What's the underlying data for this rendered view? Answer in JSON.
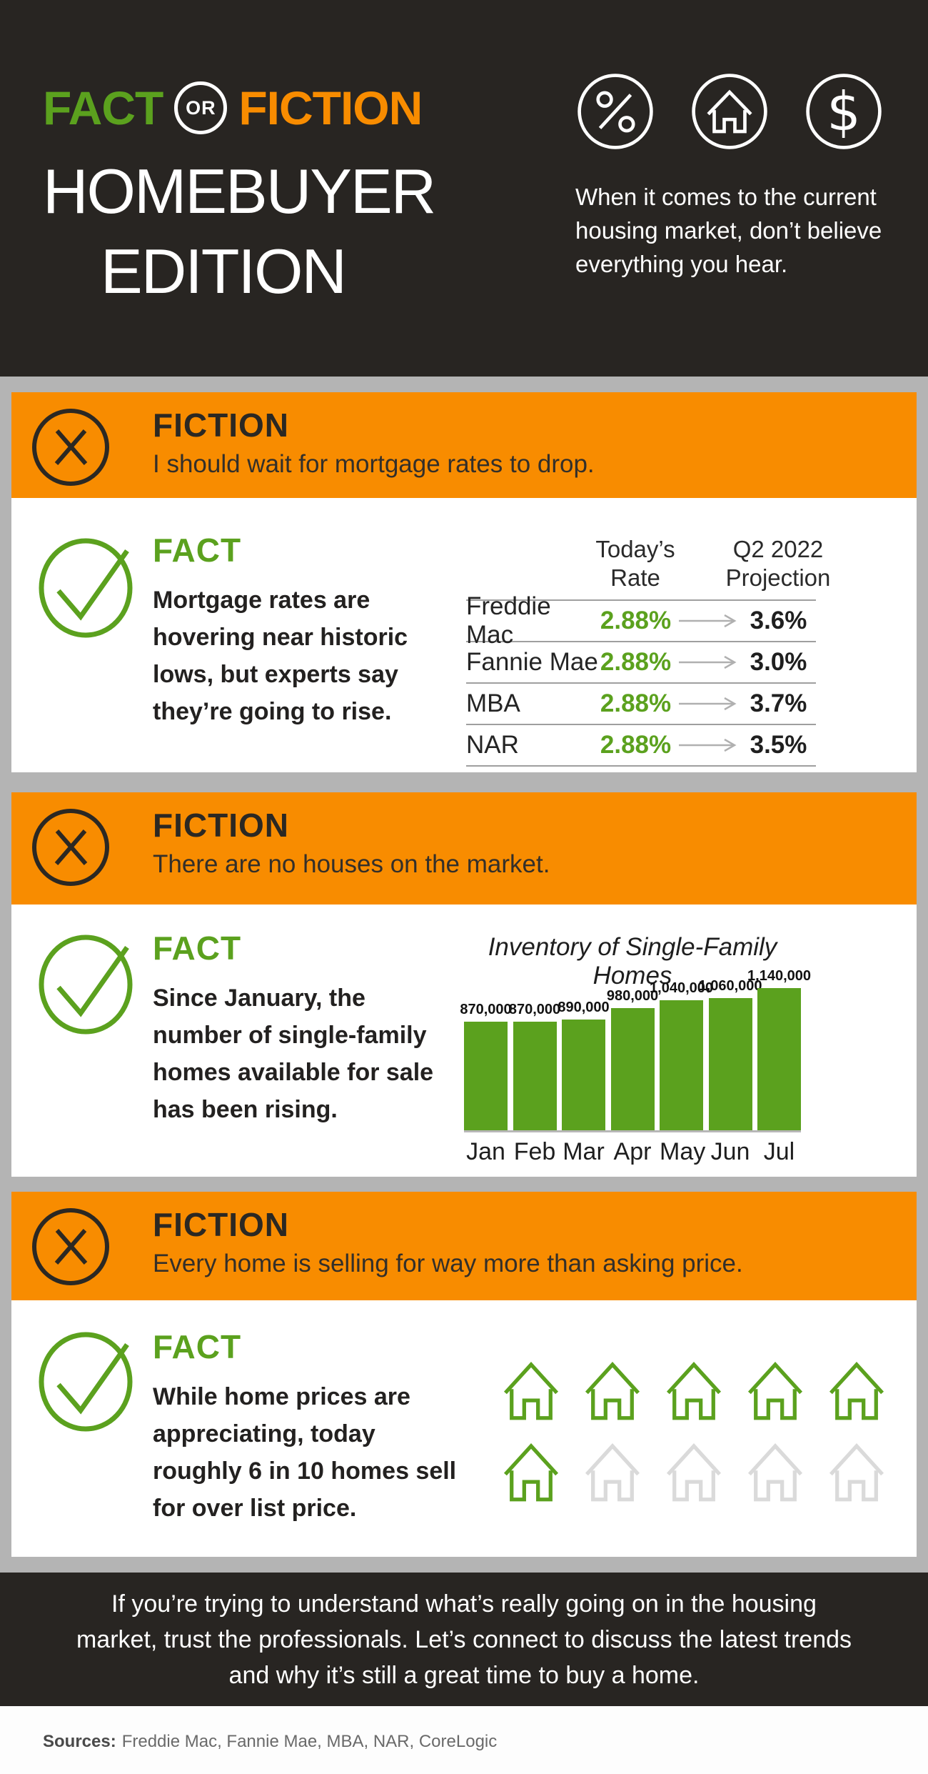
{
  "header": {
    "brand": {
      "fact": "FACT",
      "or": "OR",
      "fiction": "FICTION"
    },
    "title_line1": "HOMEBUYER",
    "title_line2": "EDITION",
    "icons": [
      "percent-icon",
      "home-icon",
      "dollar-icon"
    ],
    "tagline": "When it comes to the current housing market, don’t believe everything you hear."
  },
  "sections": [
    {
      "fiction": {
        "label": "FICTION",
        "statement": "I should wait for mortgage rates to drop."
      },
      "fact": {
        "label": "FACT",
        "statement": "Mortgage rates are hovering near historic lows, but experts say they’re going to rise."
      },
      "rate_table": {
        "headers": {
          "today": "Today’s Rate",
          "projection": "Q2 2022 Projection"
        },
        "rows": [
          {
            "source": "Freddie Mac",
            "today": "2.88%",
            "projection": "3.6%"
          },
          {
            "source": "Fannie Mae",
            "today": "2.88%",
            "projection": "3.0%"
          },
          {
            "source": "MBA",
            "today": "2.88%",
            "projection": "3.7%"
          },
          {
            "source": "NAR",
            "today": "2.88%",
            "projection": "3.5%"
          }
        ]
      }
    },
    {
      "fiction": {
        "label": "FICTION",
        "statement": "There are no houses on the market."
      },
      "fact": {
        "label": "FACT",
        "statement": "Since January, the number of single-family homes available for sale has been rising."
      }
    },
    {
      "fiction": {
        "label": "FICTION",
        "statement": "Every home is selling for way more than asking price."
      },
      "fact": {
        "label": "FACT",
        "statement": "While home prices are appreciating, today roughly 6 in 10 homes sell for over list price."
      },
      "homes": {
        "total": 10,
        "highlighted": 6,
        "per_row": 5
      }
    }
  ],
  "chart_data": {
    "type": "bar",
    "title": "Inventory of Single-Family Homes",
    "categories": [
      "Jan",
      "Feb",
      "Mar",
      "Apr",
      "May",
      "Jun",
      "Jul"
    ],
    "values": [
      870000,
      870000,
      890000,
      980000,
      1040000,
      1060000,
      1140000
    ],
    "labels": [
      "870,000",
      "870,000",
      "890,000",
      "980,000",
      "1,040,000",
      "1,060,000",
      "1,140,000"
    ],
    "xlabel": "",
    "ylabel": "",
    "ylim": [
      0,
      1140000
    ],
    "grid": false,
    "legend": false,
    "bar_color": "#5ba11e"
  },
  "footer": {
    "message": "If you’re trying to understand what’s really going on in the housing market, trust the professionals. Let’s connect to discuss the latest trends and why it’s still a great time to buy a home."
  },
  "sources": {
    "label": "Sources:",
    "list": "Freddie Mac, Fannie Mae, MBA, NAR, CoreLogic"
  },
  "colors": {
    "background": "#b4b4b4",
    "dark": "#282522",
    "orange": "#f88c00",
    "green": "#5ba11e",
    "house_gray": "#dadada",
    "white": "#ffffff"
  }
}
